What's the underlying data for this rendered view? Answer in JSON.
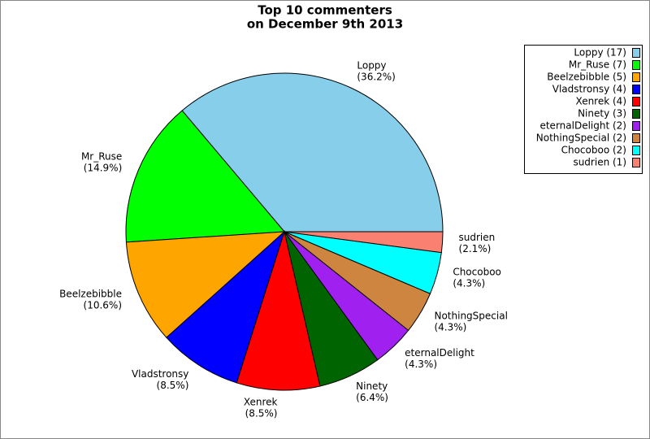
{
  "chart_data": {
    "type": "pie",
    "title": [
      "Top 10 commenters",
      "on December 9th 2013"
    ],
    "categories": [
      "Loppy",
      "Mr_Ruse",
      "Beelzebibble",
      "Vladstronsy",
      "Xenrek",
      "Ninety",
      "eternalDelight",
      "NothingSpecial",
      "Chocoboo",
      "sudrien"
    ],
    "values": [
      36.2,
      14.9,
      10.6,
      8.5,
      8.5,
      6.4,
      4.3,
      4.3,
      4.3,
      2.1
    ],
    "value_labels": [
      "(36.2%)",
      "(14.9%)",
      "(10.6%)",
      "(8.5%)",
      "(8.5%)",
      "(6.4%)",
      "(4.3%)",
      "(4.3%)",
      "(4.3%)",
      "(2.1%)"
    ],
    "legend_labels": [
      "Loppy (17)",
      "Mr_Ruse (7)",
      "Beelzebibble (5)",
      "Vladstronsy (4)",
      "Xenrek (4)",
      "Ninety (3)",
      "eternalDelight (2)",
      "NothingSpecial (2)",
      "Chocoboo (2)",
      "sudrien (1)"
    ],
    "colors": [
      "#87ceeb",
      "#00ff00",
      "#ffa500",
      "#0000ff",
      "#ff0000",
      "#006400",
      "#a020f0",
      "#cd853f",
      "#00ffff",
      "#fa8072"
    ],
    "legend": "top-right"
  }
}
